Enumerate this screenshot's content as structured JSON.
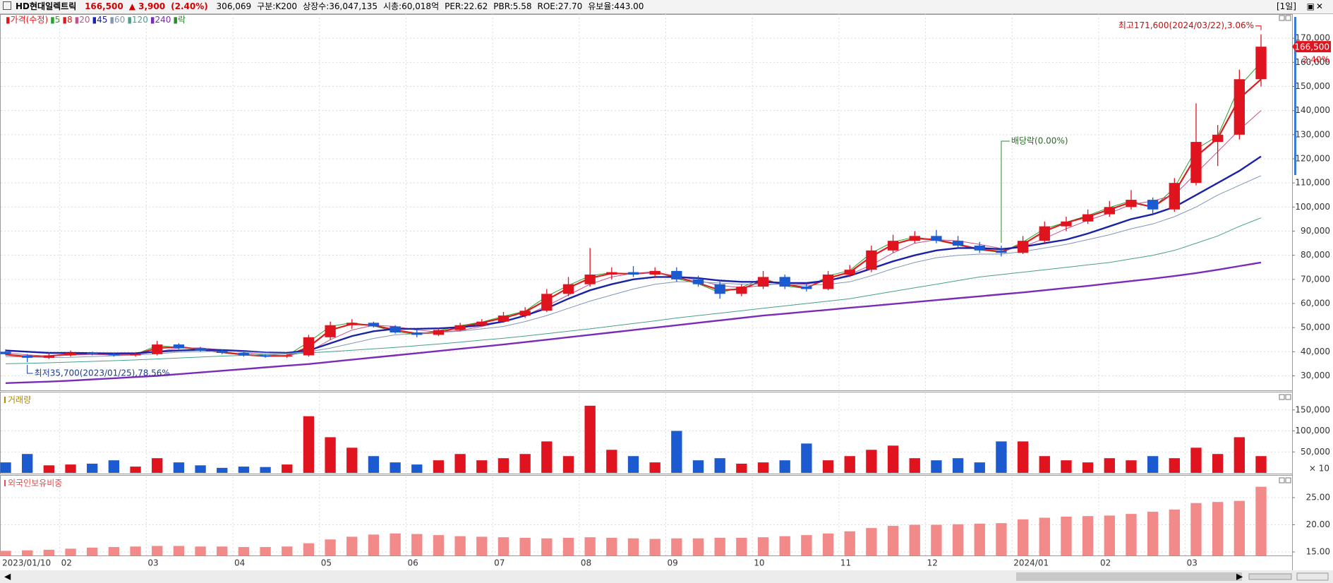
{
  "header": {
    "name": "HD현대일렉트릭",
    "price": "166,500",
    "change": "▲ 3,900",
    "change_rate": "(2.40%)",
    "volume": "306,069",
    "group": "구분:K200",
    "shares": "상장수:36,047,135",
    "market_cap": "시총:60,018억",
    "per": "PER:22.62",
    "pbr": "PBR:5.58",
    "roe": "ROE:27.70",
    "reserve": "유보율:443.00",
    "period": "[1일]"
  },
  "chart_data": [
    {
      "type": "candlestick",
      "legend_price": "가격(수정)",
      "legend_extra": "락",
      "up_color": "#e0141e",
      "down_color": "#1c5ad0",
      "grid": true,
      "categories": [
        "2023/01/10",
        null,
        null,
        "02",
        null,
        null,
        null,
        "03",
        null,
        null,
        null,
        "04",
        null,
        null,
        null,
        "05",
        null,
        null,
        null,
        "06",
        null,
        null,
        null,
        "07",
        null,
        null,
        null,
        "08",
        null,
        null,
        null,
        "09",
        null,
        null,
        null,
        "10",
        null,
        null,
        null,
        "11",
        null,
        null,
        null,
        "12",
        null,
        null,
        null,
        "2024/01",
        null,
        null,
        null,
        "02",
        null,
        null,
        null,
        "03",
        null,
        null,
        null
      ],
      "open": [
        40000,
        38500,
        37500,
        38500,
        39500,
        39000,
        38500,
        39000,
        43000,
        41500,
        40500,
        39500,
        38500,
        38000,
        38500,
        46000,
        51000,
        52000,
        50500,
        48000,
        47000,
        49000,
        51000,
        52500,
        55000,
        57000,
        64000,
        68000,
        72000,
        73000,
        72000,
        73500,
        70000,
        68000,
        64000,
        67000,
        71000,
        67000,
        66000,
        72000,
        74000,
        82000,
        86000,
        88000,
        86000,
        84000,
        82000,
        81000,
        86000,
        92000,
        94000,
        97000,
        100000,
        103000,
        99000,
        110000,
        127000,
        130000,
        153000
      ],
      "high": [
        41000,
        39000,
        39500,
        40500,
        40000,
        39500,
        39500,
        44500,
        43500,
        42000,
        41000,
        40000,
        39000,
        39000,
        47000,
        52500,
        53500,
        52500,
        51000,
        49000,
        50000,
        52000,
        53500,
        56500,
        58500,
        66000,
        71000,
        83000,
        75000,
        75500,
        75000,
        75000,
        71500,
        69000,
        68000,
        73500,
        72000,
        68500,
        73500,
        76000,
        84000,
        88500,
        90000,
        90500,
        88000,
        85500,
        84000,
        88000,
        94000,
        96000,
        99000,
        102500,
        107000,
        104000,
        112000,
        143000,
        134000,
        157000,
        171600
      ],
      "low": [
        38500,
        35700,
        37000,
        38000,
        38500,
        38000,
        38000,
        38500,
        41000,
        40000,
        39000,
        38000,
        37500,
        37500,
        38000,
        45000,
        49500,
        50000,
        47500,
        46000,
        46500,
        48500,
        50500,
        52000,
        54000,
        56500,
        63000,
        67000,
        70000,
        71000,
        70500,
        69000,
        67000,
        62000,
        63000,
        66000,
        66000,
        65000,
        65500,
        71000,
        73000,
        81000,
        85000,
        85000,
        83000,
        81000,
        79500,
        80500,
        85000,
        90000,
        93000,
        96000,
        99000,
        97000,
        98000,
        109000,
        117000,
        128000,
        150000
      ],
      "close": [
        39000,
        37500,
        38500,
        39500,
        39000,
        38500,
        39000,
        43000,
        41500,
        40500,
        39500,
        38500,
        38000,
        38500,
        46000,
        51000,
        52000,
        50500,
        48000,
        47000,
        49000,
        51000,
        52500,
        55000,
        57000,
        64000,
        68000,
        72000,
        73000,
        72000,
        73500,
        70000,
        68000,
        64000,
        67000,
        71000,
        67000,
        66000,
        72000,
        74000,
        82000,
        86000,
        88000,
        86000,
        84000,
        82000,
        81000,
        86000,
        92000,
        94000,
        97000,
        100000,
        103000,
        99000,
        110000,
        127000,
        130000,
        153000,
        166500
      ],
      "series": [
        {
          "name": "5",
          "color": "#2ca02c",
          "width": 1,
          "values": [
            38900,
            37700,
            38300,
            39300,
            39000,
            38600,
            39000,
            42500,
            41800,
            40700,
            39600,
            38600,
            38100,
            38400,
            44000,
            50500,
            52000,
            50700,
            48300,
            47200,
            48700,
            50800,
            52300,
            54700,
            56800,
            63000,
            67500,
            71500,
            72800,
            72100,
            73300,
            70300,
            68200,
            64500,
            66700,
            70500,
            67300,
            66200,
            71500,
            73700,
            81000,
            85500,
            87600,
            86200,
            84200,
            82200,
            81200,
            85500,
            91000,
            93700,
            96500,
            99800,
            102600,
            99500,
            108000,
            124000,
            129500,
            150000,
            160000
          ]
        },
        {
          "name": "8",
          "color": "#d81e1e",
          "width": 2.2,
          "values": [
            38800,
            38000,
            38200,
            39000,
            39100,
            38800,
            38900,
            41500,
            42000,
            41000,
            39800,
            38800,
            38200,
            38300,
            42000,
            49000,
            51500,
            51000,
            49000,
            47500,
            48000,
            50200,
            52000,
            54000,
            56500,
            61500,
            66500,
            70500,
            72500,
            72300,
            73000,
            71000,
            68500,
            65500,
            66000,
            69500,
            68000,
            66500,
            70500,
            73000,
            79500,
            84500,
            87000,
            86500,
            84500,
            82500,
            81500,
            84500,
            90000,
            93500,
            96000,
            99000,
            102000,
            100000,
            106000,
            121000,
            128500,
            145000,
            153000
          ]
        },
        {
          "name": "20",
          "color": "#c8508c",
          "width": 1,
          "values": [
            39500,
            38700,
            38200,
            38600,
            38900,
            38800,
            38800,
            40000,
            41500,
            41600,
            40800,
            39700,
            38800,
            38400,
            40000,
            45000,
            49000,
            51000,
            50500,
            49000,
            48200,
            48800,
            50500,
            52500,
            55000,
            59000,
            63500,
            68000,
            71000,
            72500,
            72800,
            71500,
            69500,
            67500,
            66500,
            67500,
            68500,
            68000,
            69500,
            72000,
            76000,
            81000,
            85000,
            86500,
            86000,
            84500,
            82800,
            83500,
            87000,
            91000,
            94500,
            97500,
            101000,
            102500,
            105000,
            114000,
            123000,
            132000,
            140000
          ]
        },
        {
          "name": "45",
          "color": "#1a22a8",
          "width": 2.4,
          "values": [
            40500,
            40000,
            39500,
            39500,
            39400,
            39300,
            39400,
            40000,
            40500,
            40800,
            40700,
            40300,
            39700,
            39500,
            40500,
            43500,
            46500,
            48500,
            49500,
            49500,
            49700,
            50200,
            51000,
            52500,
            55000,
            58000,
            62000,
            65500,
            68000,
            70000,
            71000,
            71000,
            70500,
            69500,
            69000,
            69000,
            68500,
            68500,
            69500,
            71500,
            74500,
            77500,
            80000,
            82000,
            83000,
            83000,
            82500,
            83500,
            85000,
            86500,
            89000,
            92000,
            95000,
            97000,
            100000,
            105000,
            110000,
            115000,
            121000
          ]
        },
        {
          "name": "60",
          "color": "#7f97b8",
          "width": 1,
          "values": [
            38000,
            37800,
            37600,
            37700,
            38000,
            38300,
            38600,
            39200,
            39800,
            40000,
            40200,
            40000,
            39500,
            39300,
            40000,
            41500,
            43500,
            45500,
            47000,
            47500,
            48000,
            48500,
            49500,
            50500,
            52500,
            55000,
            58000,
            61000,
            63500,
            66000,
            68000,
            69000,
            69000,
            68500,
            68000,
            68000,
            68000,
            67500,
            68000,
            69000,
            71500,
            74500,
            77000,
            79000,
            80000,
            80500,
            80500,
            81500,
            83000,
            84500,
            86500,
            88500,
            91000,
            93000,
            96000,
            100000,
            105000,
            109000,
            113000
          ]
        },
        {
          "name": "120",
          "color": "#46a08a",
          "width": 1,
          "values": [
            35000,
            35200,
            35400,
            35700,
            36000,
            36300,
            36600,
            37000,
            37400,
            37800,
            38200,
            38500,
            38800,
            39100,
            39500,
            40000,
            40600,
            41200,
            41800,
            42500,
            43200,
            44000,
            44800,
            45600,
            46500,
            47500,
            48500,
            49500,
            50600,
            51700,
            52800,
            54000,
            55000,
            56000,
            57000,
            58000,
            59000,
            60000,
            61000,
            62000,
            63500,
            65000,
            66500,
            68000,
            69500,
            71000,
            72000,
            73000,
            74000,
            75000,
            76000,
            77000,
            78500,
            80000,
            82000,
            85000,
            88000,
            92000,
            95500
          ]
        },
        {
          "name": "240",
          "color": "#7a2cb8",
          "width": 2.4,
          "values": [
            27000,
            27300,
            27600,
            28000,
            28500,
            29000,
            29500,
            30000,
            30700,
            31400,
            32100,
            32800,
            33500,
            34200,
            34900,
            35800,
            36700,
            37600,
            38500,
            39400,
            40300,
            41200,
            42100,
            43000,
            44000,
            45000,
            46000,
            47000,
            48000,
            49000,
            50000,
            51000,
            52000,
            53000,
            54000,
            55000,
            55800,
            56600,
            57400,
            58200,
            59000,
            59800,
            60600,
            61400,
            62200,
            63000,
            63800,
            64600,
            65500,
            66400,
            67300,
            68300,
            69300,
            70300,
            71400,
            72600,
            74000,
            75500,
            77000
          ]
        }
      ],
      "max_label": "최고171,600(2024/03/22),3.06%",
      "min_label": "최저35,700(2023/01/25),78.56%",
      "dividend_label": "배당락(0.00%)",
      "last_price_label": "166,500",
      "last_change_label": "2.40%",
      "ylim": [
        24000,
        180000
      ],
      "yticks": [
        {
          "value": 30000,
          "label": "30,000"
        },
        {
          "value": 40000,
          "label": "40,000"
        },
        {
          "value": 50000,
          "label": "50,000"
        },
        {
          "value": 60000,
          "label": "60,000"
        },
        {
          "value": 70000,
          "label": "70,000"
        },
        {
          "value": 80000,
          "label": "80,000"
        },
        {
          "value": 90000,
          "label": "90,000"
        },
        {
          "value": 100000,
          "label": "100,000"
        },
        {
          "value": 110000,
          "label": "110,000"
        },
        {
          "value": 120000,
          "label": "120,000"
        },
        {
          "value": 130000,
          "label": "130,000"
        },
        {
          "value": 140000,
          "label": "140,000"
        },
        {
          "value": 150000,
          "label": "150,000"
        },
        {
          "value": 160000,
          "label": "160,000"
        },
        {
          "value": 170000,
          "label": "170,000"
        }
      ]
    },
    {
      "type": "bar",
      "title": "거래량",
      "title_color": "#b08a00",
      "unit_label": "× 10",
      "color_by_price": true,
      "grid": true,
      "values": [
        25000,
        45000,
        18000,
        20000,
        22000,
        30000,
        15000,
        35000,
        25000,
        18000,
        12000,
        15000,
        14000,
        20000,
        135000,
        85000,
        60000,
        40000,
        25000,
        20000,
        30000,
        45000,
        30000,
        35000,
        45000,
        75000,
        40000,
        160000,
        55000,
        40000,
        25000,
        100000,
        30000,
        35000,
        22000,
        25000,
        30000,
        70000,
        30000,
        40000,
        55000,
        65000,
        35000,
        30000,
        35000,
        25000,
        75000,
        75000,
        40000,
        30000,
        25000,
        35000,
        30000,
        40000,
        35000,
        60000,
        45000,
        85000,
        40000
      ],
      "ylim": [
        0,
        190000
      ],
      "yticks": [
        {
          "value": 50000,
          "label": "50,000"
        },
        {
          "value": 100000,
          "label": "100,000"
        },
        {
          "value": 150000,
          "label": "150,000"
        }
      ]
    },
    {
      "type": "bar",
      "title": "외국인보유비중",
      "title_color": "#e05050",
      "color": "#f28a8a",
      "grid": true,
      "values": [
        15.2,
        15.3,
        15.4,
        15.6,
        15.8,
        15.9,
        16.0,
        16.1,
        16.1,
        16.0,
        16.0,
        15.9,
        15.9,
        16.0,
        16.6,
        17.3,
        17.8,
        18.2,
        18.4,
        18.3,
        18.1,
        17.9,
        17.8,
        17.7,
        17.6,
        17.5,
        17.6,
        17.7,
        17.6,
        17.5,
        17.4,
        17.5,
        17.5,
        17.6,
        17.6,
        17.7,
        17.9,
        18.1,
        18.4,
        18.8,
        19.4,
        19.8,
        20.0,
        20.0,
        20.1,
        20.2,
        20.3,
        21.0,
        21.3,
        21.5,
        21.6,
        21.7,
        22.0,
        22.4,
        22.8,
        24.0,
        24.2,
        24.4,
        27.0
      ],
      "ylim": [
        14.35,
        28.9
      ],
      "yticks": [
        {
          "value": 15,
          "label": "15.00"
        },
        {
          "value": 20,
          "label": "20.00"
        },
        {
          "value": 25,
          "label": "25.00"
        }
      ]
    }
  ]
}
